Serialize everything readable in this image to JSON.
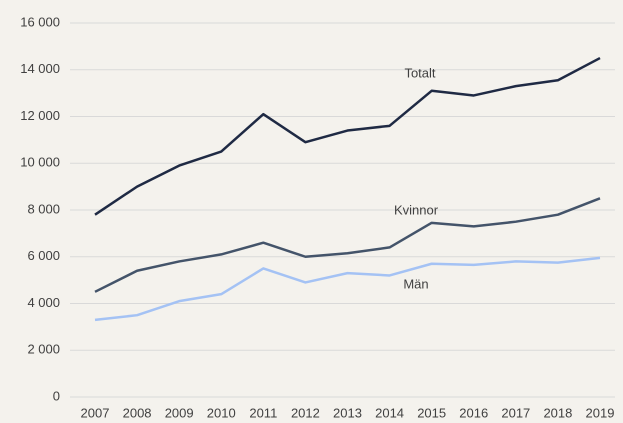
{
  "chart_data": {
    "type": "line",
    "categories": [
      "2007",
      "2008",
      "2009",
      "2010",
      "2011",
      "2012",
      "2013",
      "2014",
      "2015",
      "2016",
      "2017",
      "2018",
      "2019"
    ],
    "series": [
      {
        "name": "Totalt",
        "color": "#1f2a44",
        "values": [
          7800,
          9000,
          9900,
          10500,
          12100,
          10900,
          11400,
          11600,
          13100,
          12900,
          13300,
          13550,
          14500
        ]
      },
      {
        "name": "Kvinnor",
        "color": "#44546a",
        "values": [
          4500,
          5400,
          5800,
          6100,
          6600,
          6000,
          6150,
          6400,
          7450,
          7300,
          7500,
          7800,
          8500
        ]
      },
      {
        "name": "Män",
        "color": "#a4c2f4",
        "values": [
          3300,
          3500,
          4100,
          4400,
          5500,
          4900,
          5300,
          5200,
          5700,
          5650,
          5800,
          5750,
          5950
        ]
      }
    ],
    "ylim": [
      0,
      16000
    ],
    "yticks": [
      0,
      {
        "value": 2000,
        "label": "2 000"
      },
      {
        "value": 4000,
        "label": "4 000"
      },
      {
        "value": 6000,
        "label": "6 000"
      },
      {
        "value": 8000,
        "label": "8 000"
      },
      {
        "value": 10000,
        "label": "10 000"
      },
      {
        "value": 12000,
        "label": "12 000"
      },
      {
        "value": 14000,
        "label": "14 000"
      },
      {
        "value": 16000,
        "label": "16 000"
      }
    ],
    "grid": true
  }
}
